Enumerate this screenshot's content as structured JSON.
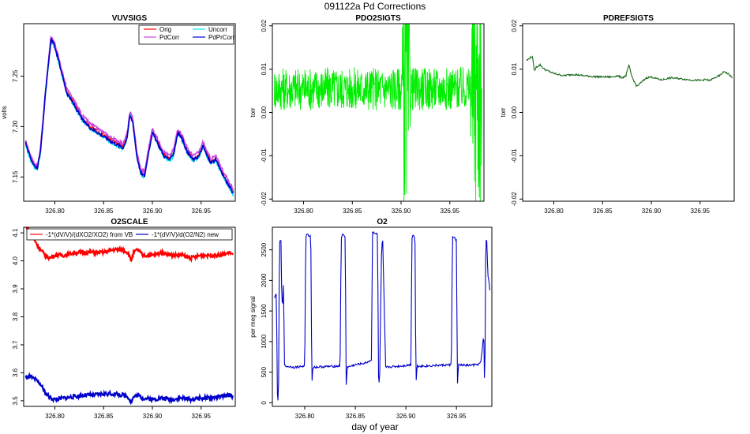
{
  "figure": {
    "title": "091122a   Pd Corrections",
    "xlabel": "day of year"
  },
  "chart_data": [
    {
      "id": "vuvsigs",
      "type": "line",
      "title": "VUVSIGS",
      "xlabel": "",
      "ylabel": "volts",
      "xlim": [
        326.768,
        326.985
      ],
      "ylim": [
        7.126,
        7.302
      ],
      "xticks": [
        326.8,
        326.85,
        326.9,
        326.95
      ],
      "xtick_labels": [
        "326.80",
        "326.85",
        "326.90",
        "326.95"
      ],
      "yticks": [
        7.15,
        7.2,
        7.25
      ],
      "ytick_labels": [
        "7.15",
        "7.20",
        "7.25"
      ],
      "legend_position": "top-right",
      "series": [
        {
          "name": "Orig",
          "color": "#ff0000",
          "x": [
            326.77,
            326.773,
            326.776,
            326.779,
            326.782,
            326.785,
            326.79,
            326.796,
            326.8,
            326.805,
            326.812,
            326.82,
            326.828,
            326.836,
            326.844,
            326.852,
            326.858,
            326.864,
            326.87,
            326.874,
            326.877,
            326.88,
            326.884,
            326.888,
            326.892,
            326.896,
            326.9,
            326.906,
            326.912,
            326.918,
            326.922,
            326.926,
            326.93,
            326.936,
            326.942,
            326.948,
            326.952,
            326.956,
            326.96,
            326.965,
            326.97,
            326.975,
            326.98,
            326.983
          ],
          "y": [
            7.185,
            7.175,
            7.168,
            7.162,
            7.16,
            7.175,
            7.23,
            7.288,
            7.28,
            7.262,
            7.235,
            7.222,
            7.208,
            7.2,
            7.195,
            7.19,
            7.186,
            7.183,
            7.18,
            7.19,
            7.212,
            7.205,
            7.172,
            7.155,
            7.152,
            7.175,
            7.195,
            7.183,
            7.172,
            7.168,
            7.175,
            7.195,
            7.19,
            7.175,
            7.168,
            7.172,
            7.182,
            7.172,
            7.165,
            7.168,
            7.158,
            7.148,
            7.14,
            7.135
          ]
        },
        {
          "name": "Uncorr",
          "color": "#00e5ee",
          "x": [
            326.77,
            326.773,
            326.776,
            326.779,
            326.782,
            326.785,
            326.79,
            326.796,
            326.8,
            326.805,
            326.812,
            326.82,
            326.828,
            326.836,
            326.844,
            326.852,
            326.858,
            326.864,
            326.87,
            326.874,
            326.877,
            326.88,
            326.884,
            326.888,
            326.892,
            326.896,
            326.9,
            326.906,
            326.912,
            326.918,
            326.922,
            326.926,
            326.93,
            326.936,
            326.942,
            326.948,
            326.952,
            326.956,
            326.96,
            326.965,
            326.97,
            326.975,
            326.98,
            326.983
          ],
          "y": [
            7.183,
            7.172,
            7.165,
            7.16,
            7.158,
            7.172,
            7.228,
            7.286,
            7.278,
            7.26,
            7.233,
            7.22,
            7.206,
            7.198,
            7.193,
            7.188,
            7.184,
            7.181,
            7.178,
            7.188,
            7.214,
            7.203,
            7.17,
            7.153,
            7.15,
            7.176,
            7.198,
            7.181,
            7.17,
            7.166,
            7.173,
            7.193,
            7.188,
            7.173,
            7.166,
            7.17,
            7.18,
            7.17,
            7.163,
            7.166,
            7.156,
            7.146,
            7.138,
            7.132
          ]
        },
        {
          "name": "PdCorr",
          "color": "#cc44dd",
          "x": [
            326.77,
            326.773,
            326.776,
            326.779,
            326.782,
            326.785,
            326.79,
            326.796,
            326.8,
            326.805,
            326.812,
            326.82,
            326.828,
            326.836,
            326.844,
            326.852,
            326.858,
            326.864,
            326.87,
            326.874,
            326.877,
            326.88,
            326.884,
            326.888,
            326.892,
            326.896,
            326.9,
            326.906,
            326.912,
            326.918,
            326.922,
            326.926,
            326.93,
            326.936,
            326.942,
            326.948,
            326.952,
            326.956,
            326.96,
            326.965,
            326.97,
            326.975,
            326.98,
            326.983
          ],
          "y": [
            7.186,
            7.176,
            7.169,
            7.163,
            7.161,
            7.176,
            7.232,
            7.29,
            7.282,
            7.264,
            7.238,
            7.225,
            7.211,
            7.203,
            7.198,
            7.193,
            7.189,
            7.186,
            7.183,
            7.193,
            7.214,
            7.208,
            7.175,
            7.158,
            7.155,
            7.178,
            7.198,
            7.186,
            7.175,
            7.171,
            7.178,
            7.198,
            7.193,
            7.178,
            7.171,
            7.175,
            7.185,
            7.175,
            7.168,
            7.171,
            7.161,
            7.151,
            7.143,
            7.138
          ]
        },
        {
          "name": "PdPrCorr",
          "color": "#0000cc",
          "x": [
            326.77,
            326.773,
            326.776,
            326.779,
            326.782,
            326.785,
            326.79,
            326.796,
            326.8,
            326.805,
            326.812,
            326.82,
            326.828,
            326.836,
            326.844,
            326.852,
            326.858,
            326.864,
            326.87,
            326.874,
            326.877,
            326.88,
            326.884,
            326.888,
            326.892,
            326.896,
            326.9,
            326.906,
            326.912,
            326.918,
            326.922,
            326.926,
            326.93,
            326.936,
            326.942,
            326.948,
            326.952,
            326.956,
            326.96,
            326.965,
            326.97,
            326.975,
            326.98,
            326.983
          ],
          "y": [
            7.184,
            7.174,
            7.167,
            7.161,
            7.159,
            7.174,
            7.229,
            7.287,
            7.279,
            7.261,
            7.234,
            7.221,
            7.207,
            7.199,
            7.194,
            7.189,
            7.185,
            7.182,
            7.179,
            7.189,
            7.211,
            7.204,
            7.171,
            7.154,
            7.151,
            7.174,
            7.194,
            7.182,
            7.171,
            7.167,
            7.174,
            7.194,
            7.189,
            7.174,
            7.167,
            7.171,
            7.181,
            7.171,
            7.164,
            7.167,
            7.157,
            7.147,
            7.139,
            7.134
          ]
        }
      ]
    },
    {
      "id": "pdo2sigts",
      "type": "line",
      "title": "PDO2SIGTS",
      "xlabel": "",
      "ylabel": "torr",
      "xlim": [
        326.768,
        326.985
      ],
      "ylim": [
        -0.0205,
        0.0205
      ],
      "xticks": [
        326.8,
        326.85,
        326.9,
        326.95
      ],
      "xtick_labels": [
        "326.80",
        "326.85",
        "326.90",
        "326.95"
      ],
      "yticks": [
        -0.02,
        -0.01,
        0.0,
        0.01,
        0.02
      ],
      "ytick_labels": [
        "-0.02",
        "-0.01",
        "0.00",
        "0.01",
        "0.02"
      ],
      "series": [
        {
          "name": "PdO2",
          "color": "#00ee00",
          "x": [
            326.77,
            326.78,
            326.79,
            326.8,
            326.81,
            326.82,
            326.83,
            326.84,
            326.85,
            326.86,
            326.87,
            326.88,
            326.89,
            326.9,
            326.903,
            326.907,
            326.91,
            326.92,
            326.93,
            326.94,
            326.95,
            326.96,
            326.97,
            326.975,
            326.98,
            326.983
          ],
          "y": [
            0.0055,
            0.0055,
            0.0055,
            0.0055,
            0.0055,
            0.0055,
            0.0055,
            0.0055,
            0.0055,
            0.0055,
            0.0055,
            0.0055,
            0.0055,
            0.0055,
            0.0055,
            0.0055,
            0.0055,
            0.0055,
            0.0055,
            0.0055,
            0.0055,
            0.0055,
            0.0055,
            0.0055,
            0.0055,
            0.0055
          ],
          "noise_amplitude": [
            0.005,
            0.005,
            0.005,
            0.005,
            0.005,
            0.005,
            0.005,
            0.005,
            0.005,
            0.005,
            0.005,
            0.005,
            0.005,
            0.005,
            0.03,
            0.03,
            0.005,
            0.005,
            0.005,
            0.005,
            0.005,
            0.005,
            0.005,
            0.03,
            0.03,
            0.03
          ]
        }
      ]
    },
    {
      "id": "pdrefsigts",
      "type": "line",
      "title": "PDREFSIGTS",
      "xlabel": "",
      "ylabel": "torr",
      "xlim": [
        326.768,
        326.985
      ],
      "ylim": [
        -0.0205,
        0.0205
      ],
      "xticks": [
        326.8,
        326.85,
        326.9,
        326.95
      ],
      "xtick_labels": [
        "326.80",
        "326.85",
        "326.90",
        "326.95"
      ],
      "yticks": [
        -0.02,
        -0.01,
        0.0,
        0.01,
        0.02
      ],
      "ytick_labels": [
        "-0.02",
        "-0.01",
        "0.00",
        "0.01",
        "0.02"
      ],
      "series": [
        {
          "name": "PdRef",
          "color": "#1a6b1a",
          "x": [
            326.772,
            326.775,
            326.778,
            326.78,
            326.782,
            326.786,
            326.79,
            326.8,
            326.81,
            326.82,
            326.83,
            326.84,
            326.85,
            326.86,
            326.865,
            326.87,
            326.874,
            326.877,
            326.879,
            326.881,
            326.885,
            326.89,
            326.895,
            326.9,
            326.91,
            326.92,
            326.93,
            326.94,
            326.95,
            326.955,
            326.96,
            326.965,
            326.97,
            326.975,
            326.98,
            326.983
          ],
          "y": [
            0.012,
            0.0125,
            0.013,
            0.0095,
            0.0105,
            0.011,
            0.01,
            0.009,
            0.0085,
            0.0088,
            0.0085,
            0.0083,
            0.0082,
            0.0082,
            0.0085,
            0.008,
            0.0085,
            0.011,
            0.009,
            0.0078,
            0.006,
            0.007,
            0.008,
            0.0082,
            0.0075,
            0.008,
            0.0078,
            0.0075,
            0.0074,
            0.0076,
            0.0074,
            0.008,
            0.0085,
            0.0095,
            0.0087,
            0.008
          ]
        }
      ]
    },
    {
      "id": "o2scale",
      "type": "line",
      "title": "O2SCALE",
      "xlabel": "",
      "ylabel": "",
      "xlim": [
        326.768,
        326.985
      ],
      "ylim": [
        3.48,
        4.12
      ],
      "xticks": [
        326.8,
        326.85,
        326.9,
        326.95
      ],
      "xtick_labels": [
        "326.80",
        "326.85",
        "326.90",
        "326.95"
      ],
      "yticks": [
        3.5,
        3.6,
        3.7,
        3.8,
        3.9,
        4.0,
        4.1
      ],
      "ytick_labels": [
        "3.5",
        "3.6",
        "3.7",
        "3.8",
        "3.9",
        "4.0",
        "4.1"
      ],
      "legend_position": "top",
      "series": [
        {
          "name": "-1*(dV/V)/(dXO2/XO2) from VB",
          "color": "#ff0000",
          "x": [
            326.77,
            326.775,
            326.78,
            326.785,
            326.79,
            326.795,
            326.8,
            326.81,
            326.82,
            326.83,
            326.84,
            326.85,
            326.86,
            326.87,
            326.875,
            326.878,
            326.881,
            326.885,
            326.89,
            326.9,
            326.91,
            326.92,
            326.93,
            326.94,
            326.95,
            326.96,
            326.97,
            326.98,
            326.983
          ],
          "y": [
            4.13,
            4.1,
            4.07,
            4.04,
            4.02,
            4.01,
            4.02,
            4.02,
            4.03,
            4.03,
            4.03,
            4.03,
            4.04,
            4.04,
            4.03,
            4.0,
            4.03,
            4.04,
            4.02,
            4.02,
            4.03,
            4.02,
            4.02,
            4.01,
            4.02,
            4.02,
            4.02,
            4.03,
            4.02
          ]
        },
        {
          "name": "-1*(dV/V)/d(O2/N2) new",
          "color": "#0000cc",
          "x": [
            326.77,
            326.775,
            326.78,
            326.785,
            326.79,
            326.795,
            326.8,
            326.81,
            326.82,
            326.83,
            326.84,
            326.85,
            326.86,
            326.87,
            326.875,
            326.878,
            326.881,
            326.885,
            326.89,
            326.9,
            326.91,
            326.92,
            326.93,
            326.94,
            326.95,
            326.96,
            326.97,
            326.98,
            326.983
          ],
          "y": [
            3.585,
            3.585,
            3.575,
            3.56,
            3.53,
            3.51,
            3.505,
            3.51,
            3.515,
            3.52,
            3.52,
            3.525,
            3.525,
            3.52,
            3.515,
            3.495,
            3.515,
            3.52,
            3.51,
            3.505,
            3.51,
            3.505,
            3.51,
            3.505,
            3.51,
            3.51,
            3.515,
            3.52,
            3.515
          ]
        }
      ]
    },
    {
      "id": "o2",
      "type": "line",
      "title": "O2",
      "xlabel": "",
      "ylabel": "per meg signal",
      "xlim": [
        326.768,
        326.985
      ],
      "ylim": [
        -60,
        2870
      ],
      "xticks": [
        326.8,
        326.85,
        326.9,
        326.95
      ],
      "xtick_labels": [
        "326.80",
        "326.85",
        "326.90",
        "326.95"
      ],
      "yticks": [
        0,
        500,
        1000,
        1500,
        2000,
        2500
      ],
      "ytick_labels": [
        "0",
        "500",
        "1000",
        "1500",
        "2000",
        "2500"
      ],
      "series": [
        {
          "name": "O2",
          "color": "#0000cc",
          "x": [
            326.77,
            326.771,
            326.772,
            326.773,
            326.774,
            326.775,
            326.776,
            326.7765,
            326.777,
            326.778,
            326.779,
            326.78,
            326.79,
            326.8,
            326.801,
            326.802,
            326.806,
            326.807,
            326.808,
            326.82,
            326.835,
            326.836,
            326.837,
            326.84,
            326.841,
            326.842,
            326.85,
            326.86,
            326.866,
            326.867,
            326.872,
            326.873,
            326.874,
            326.876,
            326.877,
            326.878,
            326.88,
            326.895,
            326.905,
            326.906,
            326.907,
            326.909,
            326.91,
            326.911,
            326.92,
            326.93,
            326.945,
            326.946,
            326.947,
            326.95,
            326.951,
            326.952,
            326.96,
            326.97,
            326.974,
            326.977,
            326.978,
            326.979,
            326.98,
            326.981,
            326.982,
            326.983
          ],
          "y": [
            1700,
            1750,
            1800,
            60,
            -10,
            2600,
            2660,
            2650,
            1950,
            1500,
            2000,
            600,
            580,
            600,
            2700,
            2750,
            2720,
            300,
            580,
            590,
            600,
            2700,
            2750,
            2720,
            300,
            580,
            620,
            650,
            700,
            2800,
            2750,
            300,
            350,
            2500,
            2700,
            2000,
            580,
            600,
            620,
            2700,
            2750,
            2700,
            300,
            600,
            600,
            610,
            620,
            2700,
            2720,
            2650,
            300,
            620,
            610,
            620,
            650,
            1100,
            80,
            2700,
            2650,
            2100,
            2000,
            1850
          ]
        }
      ]
    }
  ]
}
